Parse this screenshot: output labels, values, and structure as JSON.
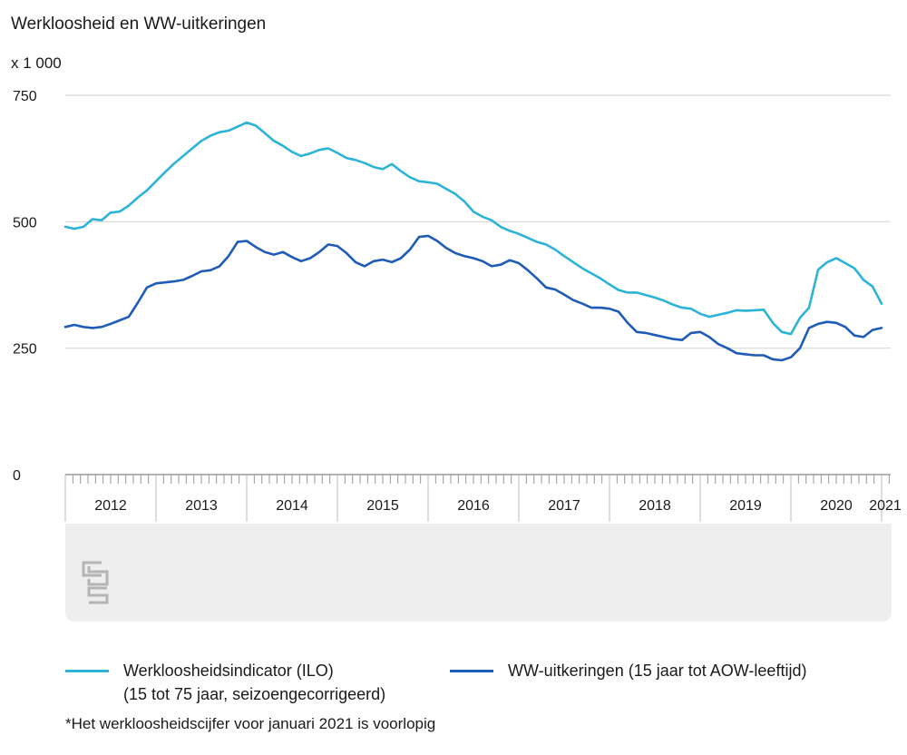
{
  "chart_data": {
    "type": "line",
    "title": "Werkloosheid en WW-uitkeringen",
    "unit_label": "x 1 000",
    "ylim": [
      0,
      750
    ],
    "y_ticks": [
      0,
      250,
      500,
      750
    ],
    "y_tick_labels": [
      "0",
      "250",
      "500",
      "750"
    ],
    "grid": true,
    "x_range": [
      2012.0,
      2021.1
    ],
    "year_labels": [
      "2012",
      "2013",
      "2014",
      "2015",
      "2016",
      "2017",
      "2018",
      "2019",
      "2020",
      "2021"
    ],
    "legend_position": "bottom",
    "series": [
      {
        "name": "Werkloosheidsindicator (ILO)",
        "name_line2": "(15 tot 75 jaar, seizoengecorrigeerd)",
        "color": "#2bb3d8",
        "x": [
          2012.0,
          2012.1,
          2012.2,
          2012.3,
          2012.4,
          2012.5,
          2012.6,
          2012.7,
          2012.8,
          2012.9,
          2013.0,
          2013.1,
          2013.2,
          2013.3,
          2013.4,
          2013.5,
          2013.6,
          2013.7,
          2013.8,
          2013.9,
          2014.0,
          2014.1,
          2014.2,
          2014.3,
          2014.4,
          2014.5,
          2014.6,
          2014.7,
          2014.8,
          2014.9,
          2015.0,
          2015.1,
          2015.2,
          2015.3,
          2015.4,
          2015.5,
          2015.6,
          2015.7,
          2015.8,
          2015.9,
          2016.0,
          2016.1,
          2016.2,
          2016.3,
          2016.4,
          2016.5,
          2016.6,
          2016.7,
          2016.8,
          2016.9,
          2017.0,
          2017.1,
          2017.2,
          2017.3,
          2017.4,
          2017.5,
          2017.6,
          2017.7,
          2017.8,
          2017.9,
          2018.0,
          2018.1,
          2018.2,
          2018.3,
          2018.4,
          2018.5,
          2018.6,
          2018.7,
          2018.8,
          2018.9,
          2019.0,
          2019.1,
          2019.2,
          2019.3,
          2019.4,
          2019.5,
          2019.6,
          2019.7,
          2019.8,
          2019.9,
          2020.0,
          2020.1,
          2020.2,
          2020.3,
          2020.4,
          2020.5,
          2020.6,
          2020.7,
          2020.8,
          2020.9,
          2021.0
        ],
        "values": [
          490,
          486,
          490,
          505,
          503,
          518,
          520,
          532,
          548,
          562,
          580,
          598,
          615,
          630,
          645,
          660,
          670,
          677,
          680,
          688,
          696,
          690,
          675,
          660,
          650,
          638,
          630,
          635,
          642,
          645,
          636,
          626,
          622,
          616,
          608,
          604,
          614,
          600,
          588,
          580,
          578,
          575,
          565,
          555,
          540,
          520,
          510,
          503,
          490,
          482,
          476,
          468,
          460,
          455,
          445,
          432,
          420,
          408,
          398,
          388,
          376,
          365,
          360,
          360,
          355,
          350,
          344,
          336,
          330,
          328,
          318,
          312,
          316,
          320,
          325,
          324,
          325,
          326,
          300,
          282,
          278,
          310,
          330,
          405,
          420,
          428,
          418,
          408,
          385,
          372,
          338
        ]
      },
      {
        "name": "WW-uitkeringen (15 jaar tot AOW-leeftijd)",
        "color": "#1f5bb8",
        "x": [
          2012.0,
          2012.1,
          2012.2,
          2012.3,
          2012.4,
          2012.5,
          2012.6,
          2012.7,
          2012.8,
          2012.9,
          2013.0,
          2013.1,
          2013.2,
          2013.3,
          2013.4,
          2013.5,
          2013.6,
          2013.7,
          2013.8,
          2013.9,
          2014.0,
          2014.1,
          2014.2,
          2014.3,
          2014.4,
          2014.5,
          2014.6,
          2014.7,
          2014.8,
          2014.9,
          2015.0,
          2015.1,
          2015.2,
          2015.3,
          2015.4,
          2015.5,
          2015.6,
          2015.7,
          2015.8,
          2015.9,
          2016.0,
          2016.1,
          2016.2,
          2016.3,
          2016.4,
          2016.5,
          2016.6,
          2016.7,
          2016.8,
          2016.9,
          2017.0,
          2017.1,
          2017.2,
          2017.3,
          2017.4,
          2017.5,
          2017.6,
          2017.7,
          2017.8,
          2017.9,
          2018.0,
          2018.1,
          2018.2,
          2018.3,
          2018.4,
          2018.5,
          2018.6,
          2018.7,
          2018.8,
          2018.9,
          2019.0,
          2019.1,
          2019.2,
          2019.3,
          2019.4,
          2019.5,
          2019.6,
          2019.7,
          2019.8,
          2019.9,
          2020.0,
          2020.1,
          2020.2,
          2020.3,
          2020.4,
          2020.5,
          2020.6,
          2020.7,
          2020.8,
          2020.9,
          2021.0
        ],
        "values": [
          292,
          296,
          292,
          290,
          292,
          298,
          305,
          312,
          340,
          370,
          378,
          380,
          382,
          385,
          393,
          402,
          404,
          412,
          432,
          460,
          462,
          450,
          440,
          435,
          440,
          430,
          422,
          428,
          440,
          455,
          452,
          438,
          420,
          412,
          422,
          425,
          420,
          428,
          445,
          470,
          472,
          462,
          448,
          438,
          432,
          428,
          422,
          412,
          415,
          424,
          418,
          404,
          388,
          370,
          366,
          356,
          345,
          338,
          330,
          330,
          328,
          322,
          300,
          282,
          280,
          276,
          272,
          268,
          266,
          280,
          282,
          272,
          258,
          250,
          240,
          238,
          236,
          236,
          228,
          226,
          232,
          250,
          290,
          298,
          302,
          300,
          292,
          275,
          272,
          286,
          290
        ]
      }
    ]
  },
  "footnote": "*Het werkloosheidscijfer voor januari 2021 is voorlopig",
  "logo_text": "cbs"
}
